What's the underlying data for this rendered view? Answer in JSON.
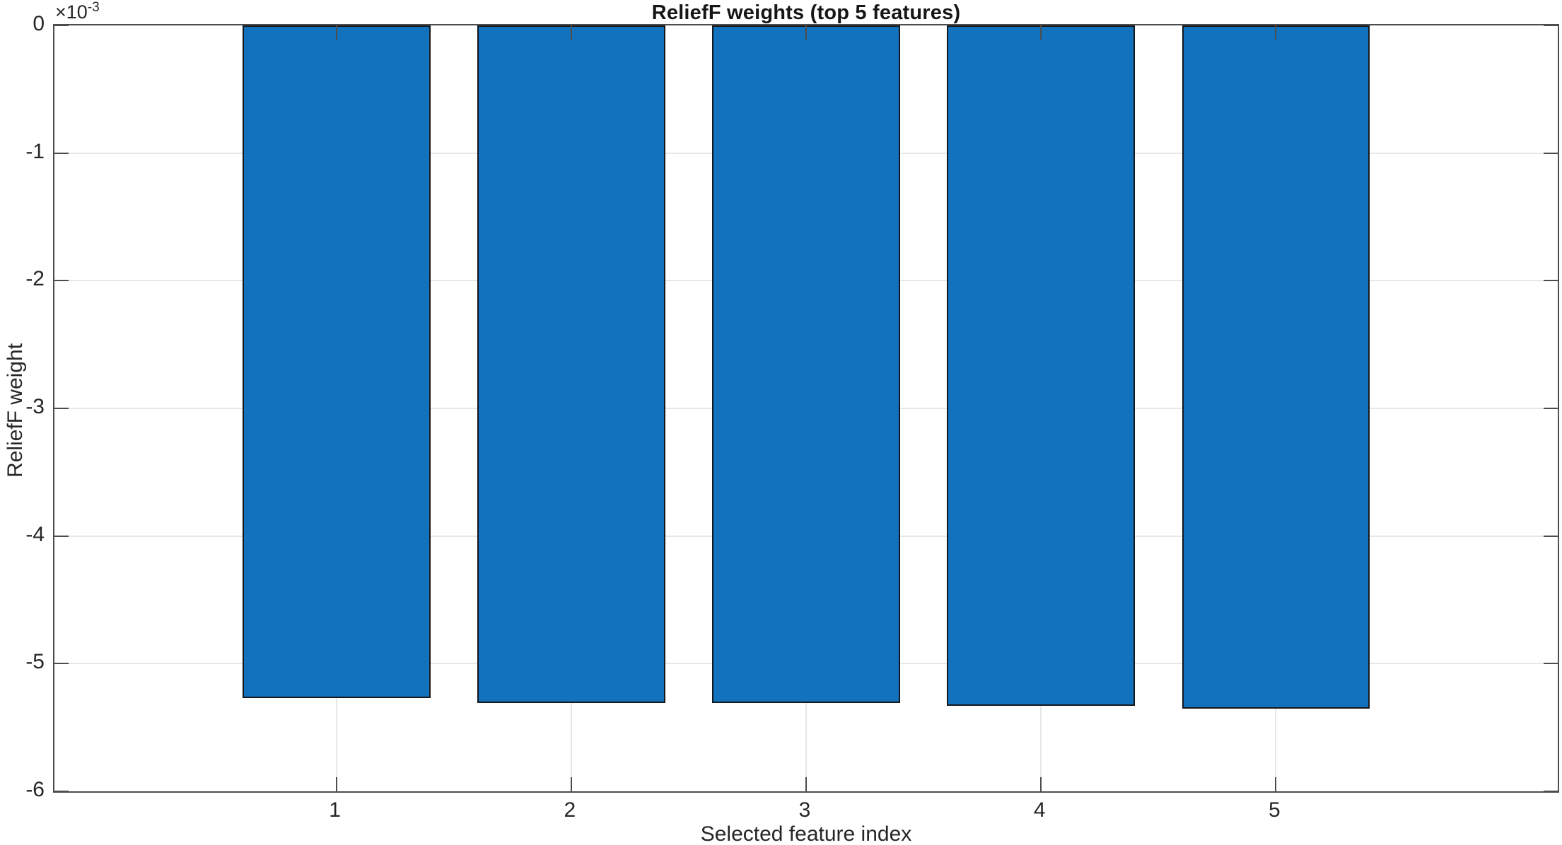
{
  "chart_data": {
    "type": "bar",
    "title": "ReliefF weights (top 5 features)",
    "xlabel": "Selected feature index",
    "ylabel": "ReliefF weight",
    "y_exponent_base": "×10",
    "y_exponent_power": "-3",
    "categories": [
      1,
      2,
      3,
      4,
      5
    ],
    "values": [
      -0.00527,
      -0.00531,
      -0.00531,
      -0.00533,
      -0.00535
    ],
    "xlim": [
      -0.2,
      6.2
    ],
    "ylim": [
      -0.006,
      0
    ],
    "yticks": [
      0,
      -0.001,
      -0.002,
      -0.003,
      -0.004,
      -0.005,
      -0.006
    ],
    "ytick_labels": [
      "0",
      "-1",
      "-2",
      "-3",
      "-4",
      "-5",
      "-6"
    ],
    "xticks": [
      1,
      2,
      3,
      4,
      5
    ],
    "xtick_labels": [
      "1",
      "2",
      "3",
      "4",
      "5"
    ],
    "grid": true,
    "legend": null,
    "bar_width_units": 0.8,
    "bar_color": "#1272bd",
    "bar_edge_color": "#16181d",
    "axis_color": "#4d4d4d",
    "grid_color": "#e7e7e7",
    "text_color": "#262626"
  }
}
